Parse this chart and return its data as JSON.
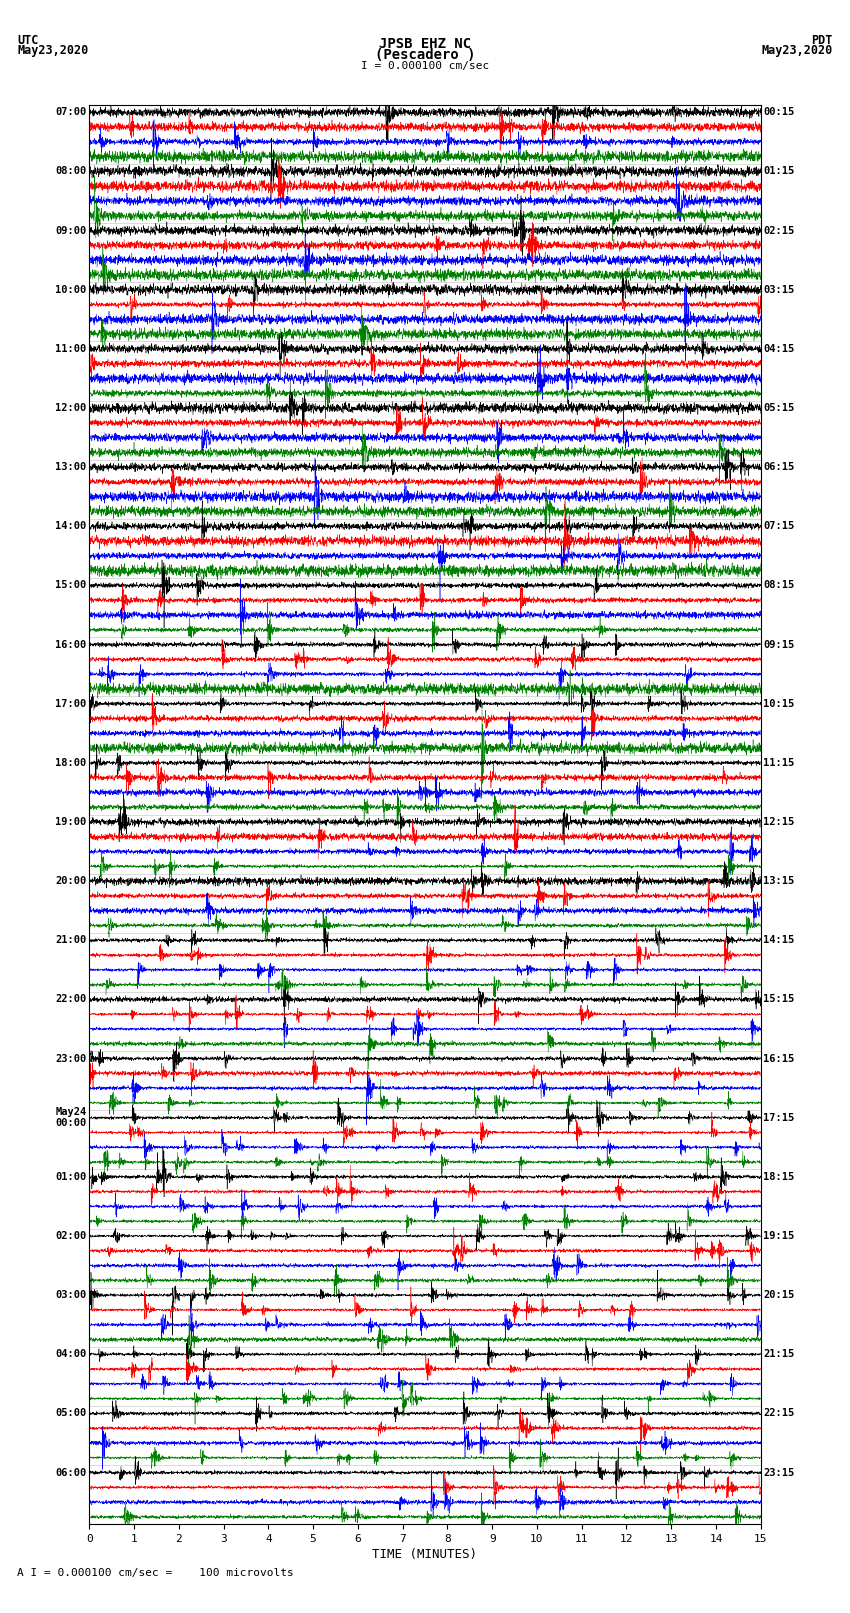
{
  "title_line1": "JPSB EHZ NC",
  "title_line2": "(Pescadero )",
  "scale_text": "I = 0.000100 cm/sec",
  "left_header_line1": "UTC",
  "left_header_line2": "May23,2020",
  "right_header_line1": "PDT",
  "right_header_line2": "May23,2020",
  "bottom_label": "A I = 0.000100 cm/sec =    100 microvolts",
  "xlabel": "TIME (MINUTES)",
  "left_times": [
    "07:00",
    "08:00",
    "09:00",
    "10:00",
    "11:00",
    "12:00",
    "13:00",
    "14:00",
    "15:00",
    "16:00",
    "17:00",
    "18:00",
    "19:00",
    "20:00",
    "21:00",
    "22:00",
    "23:00",
    "May24\n00:00",
    "01:00",
    "02:00",
    "03:00",
    "04:00",
    "05:00",
    "06:00"
  ],
  "right_times": [
    "00:15",
    "01:15",
    "02:15",
    "03:15",
    "04:15",
    "05:15",
    "06:15",
    "07:15",
    "08:15",
    "09:15",
    "10:15",
    "11:15",
    "12:15",
    "13:15",
    "14:15",
    "15:15",
    "16:15",
    "17:15",
    "18:15",
    "19:15",
    "20:15",
    "21:15",
    "22:15",
    "23:15"
  ],
  "n_rows": 24,
  "traces_per_row": 4,
  "trace_colors": [
    "black",
    "red",
    "blue",
    "green"
  ],
  "fig_width": 8.5,
  "fig_height": 16.13,
  "bg_color": "white",
  "x_ticks": [
    0,
    1,
    2,
    3,
    4,
    5,
    6,
    7,
    8,
    9,
    10,
    11,
    12,
    13,
    14,
    15
  ],
  "n_points": 3600
}
